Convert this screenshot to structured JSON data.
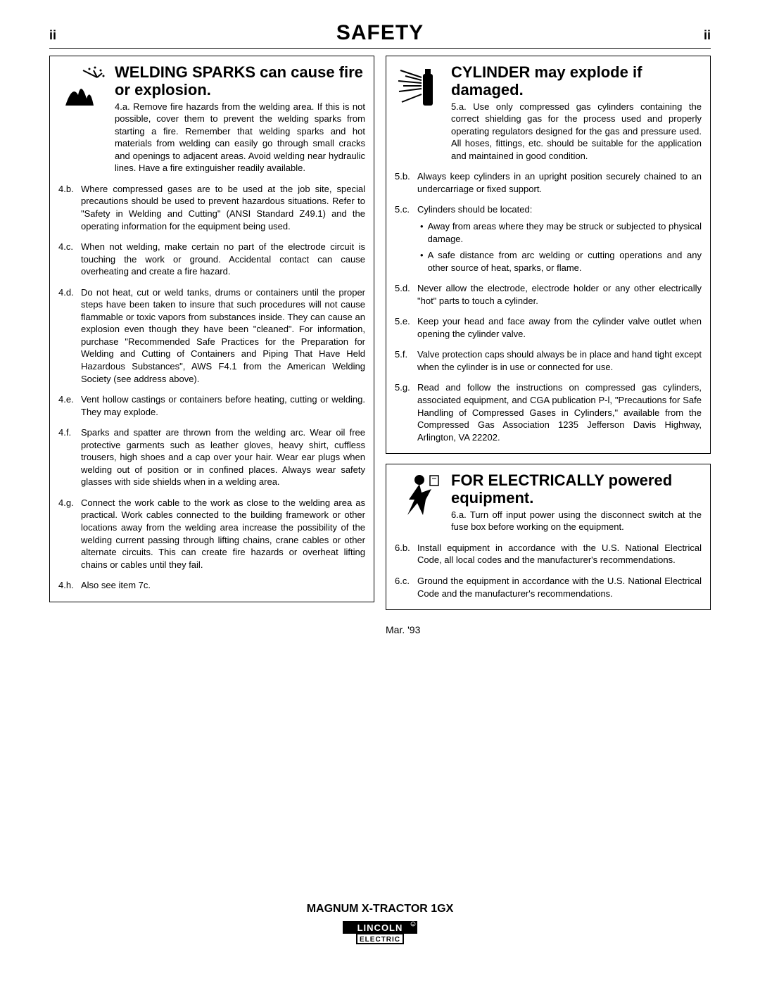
{
  "page": {
    "number_left": "ii",
    "title": "SAFETY",
    "number_right": "ii"
  },
  "left_box": {
    "title": "WELDING SPARKS can cause fire or explosion.",
    "lead_label": "4.a.",
    "lead_text": "Remove fire hazards from the welding area. If this is not possible, cover them to prevent the welding sparks from starting a fire. Remember that welding sparks and hot materials from welding can easily go through small cracks and openings to adjacent areas. Avoid welding near hydraulic lines. Have a fire extinguisher readily available.",
    "items": [
      {
        "label": "4.b.",
        "text": "Where compressed gases are to be used at the job site, special precautions should be used to prevent hazardous situations. Refer to \"Safety in Welding and Cutting\" (ANSI Standard Z49.1) and the operating information for the equipment being used."
      },
      {
        "label": "4.c.",
        "text": "When not welding, make certain no part of the electrode circuit is touching the work or ground. Accidental contact can cause overheating and create a fire hazard."
      },
      {
        "label": "4.d.",
        "text": "Do not heat, cut or weld tanks, drums or containers until the proper steps have been taken to insure that such procedures will not cause flammable or toxic vapors from substances inside. They can cause an explosion even though they have been \"cleaned\". For information, purchase \"Recommended Safe Practices for the Preparation for Welding and Cutting of Containers and Piping That Have Held Hazardous Substances\", AWS F4.1 from the American Welding Society (see address above)."
      },
      {
        "label": "4.e.",
        "text": "Vent hollow castings or containers before heating, cutting or welding. They may explode."
      },
      {
        "label": "4.f.",
        "text": "Sparks and spatter are thrown from the welding arc. Wear oil free protective garments such as leather gloves, heavy shirt, cuffless trousers, high shoes and a cap over your hair. Wear ear plugs when welding out of position or in confined places. Always wear safety glasses with side shields when in a welding area."
      },
      {
        "label": "4.g.",
        "text": "Connect the work cable to the work as close to the welding area as practical. Work cables connected to the building framework or other locations away from the welding area increase the possibility of the welding current passing through lifting chains, crane cables or other alternate circuits. This can create fire hazards or overheat lifting chains or cables until they fail."
      },
      {
        "label": "4.h.",
        "text": "Also see item 7c."
      }
    ]
  },
  "right_box1": {
    "title": "CYLINDER may explode if damaged.",
    "lead_label": "5.a.",
    "lead_text": "Use only compressed gas cylinders containing the correct shielding gas for the process used and properly operating regulators designed for the gas and pressure used. All hoses, fittings, etc. should be suitable for the application and maintained in good condition.",
    "items": [
      {
        "label": "5.b.",
        "text": "Always keep cylinders in an upright position securely chained to an undercarriage or fixed support."
      },
      {
        "label": "5.c.",
        "text": "Cylinders should be located:",
        "subs": [
          "Away from areas where they may be struck or subjected to physical damage.",
          "A safe distance from arc welding or cutting operations and any other source of heat, sparks, or flame."
        ]
      },
      {
        "label": "5.d.",
        "text": "Never allow the electrode, electrode holder or any other electrically \"hot\" parts to touch a cylinder."
      },
      {
        "label": "5.e.",
        "text": "Keep your head and face away from the cylinder valve outlet when opening the cylinder valve."
      },
      {
        "label": "5.f.",
        "text": "Valve protection caps should always be in place and hand tight except when the cylinder is in use or connected for use."
      },
      {
        "label": "5.g.",
        "text": "Read and follow the instructions on compressed gas cylinders, associated equipment, and CGA publication P-l, \"Precautions for Safe Handling of Compressed Gases in Cylinders,\" available from the Compressed Gas Association 1235 Jefferson Davis Highway, Arlington, VA 22202."
      }
    ]
  },
  "right_box2": {
    "title": "FOR ELECTRICALLY powered equipment.",
    "lead_label": "6.a.",
    "lead_text": "Turn off input power using the disconnect switch at the fuse box before working on the equipment.",
    "items": [
      {
        "label": "6.b.",
        "text": "Install equipment in accordance with the U.S. National Electrical Code, all local codes and the manufacturer's recommendations."
      },
      {
        "label": "6.c.",
        "text": "Ground the equipment in accordance with the U.S. National Electrical Code and the manufacturer's recommendations."
      }
    ]
  },
  "date_note": "Mar. '93",
  "footer": {
    "product": "MAGNUM X-TRACTOR 1GX",
    "brand_top": "LINCOLN",
    "brand_bottom": "ELECTRIC"
  },
  "style": {
    "text_color": "#000000",
    "bg_color": "#ffffff",
    "border_color": "#000000",
    "body_fontsize": 13,
    "title_fontsize": 22,
    "header_fontsize": 30
  }
}
